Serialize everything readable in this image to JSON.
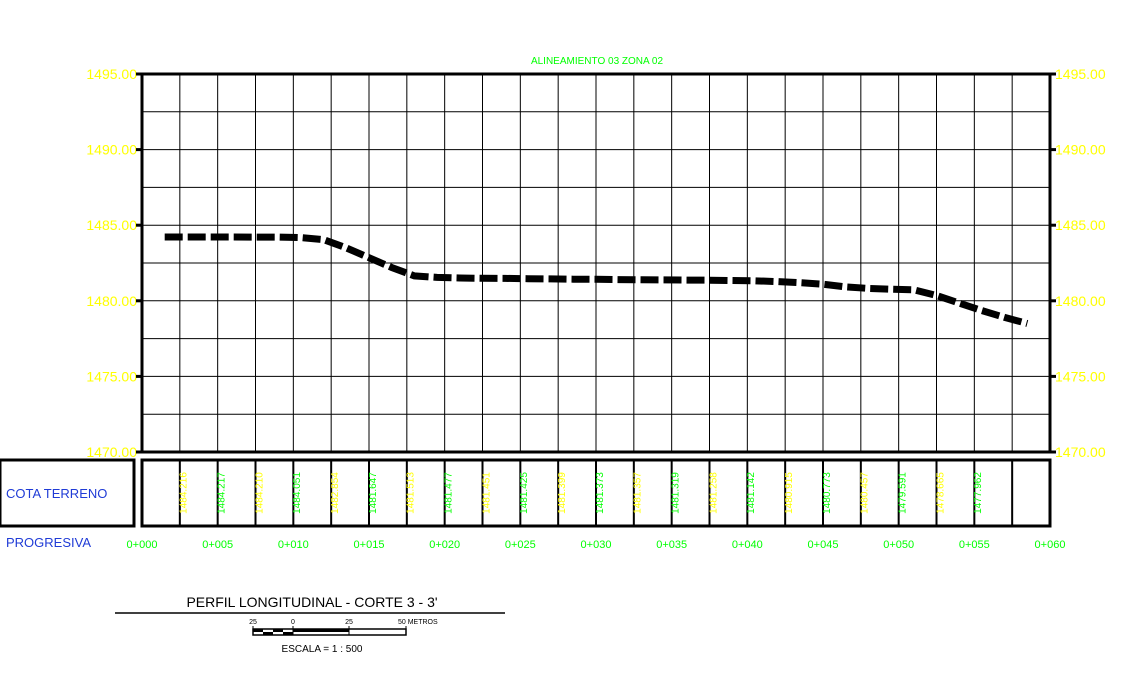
{
  "chart_data": {
    "type": "line",
    "title": "ALINEAMIENTO 03 ZONA 02",
    "ylim": [
      1470,
      1495
    ],
    "yticks": [
      "1470.00",
      "1475.00",
      "1480.00",
      "1485.00",
      "1490.00",
      "1495.00"
    ],
    "xlim": [
      0,
      60
    ],
    "xticks": [
      "0+000",
      "0+005",
      "0+010",
      "0+015",
      "0+020",
      "0+025",
      "0+030",
      "0+035",
      "0+040",
      "0+045",
      "0+050",
      "0+055",
      "0+060"
    ],
    "series": [
      {
        "x": [
          1.5,
          3,
          4.5,
          6,
          7.5,
          9,
          10.5,
          12,
          13.5,
          15,
          16.5,
          18,
          19.5,
          21,
          22.5,
          24,
          25.5,
          27,
          28.5,
          30,
          31.5,
          33,
          34.5,
          36,
          37.5,
          39,
          40.5,
          42,
          43.5,
          45,
          46.5,
          48,
          49.5,
          51,
          52.5,
          54,
          55.5,
          57,
          58.5
        ],
        "values": [
          1484.22,
          1484.22,
          1484.22,
          1484.22,
          1484.21,
          1484.21,
          1484.18,
          1484.05,
          1483.5,
          1482.85,
          1482.2,
          1481.65,
          1481.55,
          1481.51,
          1481.49,
          1481.48,
          1481.46,
          1481.45,
          1481.43,
          1481.42,
          1481.4,
          1481.39,
          1481.38,
          1481.37,
          1481.36,
          1481.34,
          1481.32,
          1481.27,
          1481.2,
          1481.1,
          1480.92,
          1480.82,
          1480.77,
          1480.73,
          1480.35,
          1479.85,
          1479.35,
          1478.9,
          1478.5
        ]
      }
    ]
  },
  "profile_table": {
    "row_labels": [
      "COTA TERRENO",
      "PROGRESIVA"
    ],
    "cota_values": [
      "1484.216",
      "1484.217",
      "1484.210",
      "1484.051",
      "1482.854",
      "1481.647",
      "1481.513",
      "1481.477",
      "1481.451",
      "1481.425",
      "1481.399",
      "1481.373",
      "1481.357",
      "1481.319",
      "1481.258",
      "1481.142",
      "1480.915",
      "1480.773",
      "1480.457",
      "1479.591",
      "1478.665",
      "1477.962"
    ],
    "cota_colors": [
      "#ffff00",
      "#00ff00",
      "#ffff00",
      "#00ff00",
      "#ffff00",
      "#00ff00",
      "#ffff00",
      "#00ff00",
      "#ffff00",
      "#00ff00",
      "#ffff00",
      "#00ff00",
      "#ffff00",
      "#00ff00",
      "#ffff00",
      "#00ff00",
      "#ffff00",
      "#00ff00",
      "#ffff00",
      "#00ff00",
      "#ffff00",
      "#00ff00"
    ]
  },
  "footer": {
    "profile_title": "PERFIL LONGITUDINAL - CORTE 3 - 3'",
    "scale_labels": [
      "25",
      "0",
      "25",
      "50 METROS"
    ],
    "scale_text": "ESCALA = 1 : 500"
  },
  "colors": {
    "yaxis_text": "#ffff00",
    "xaxis_text": "#00ff00",
    "row_label": "#1f3bd6",
    "grid": "#000000"
  }
}
